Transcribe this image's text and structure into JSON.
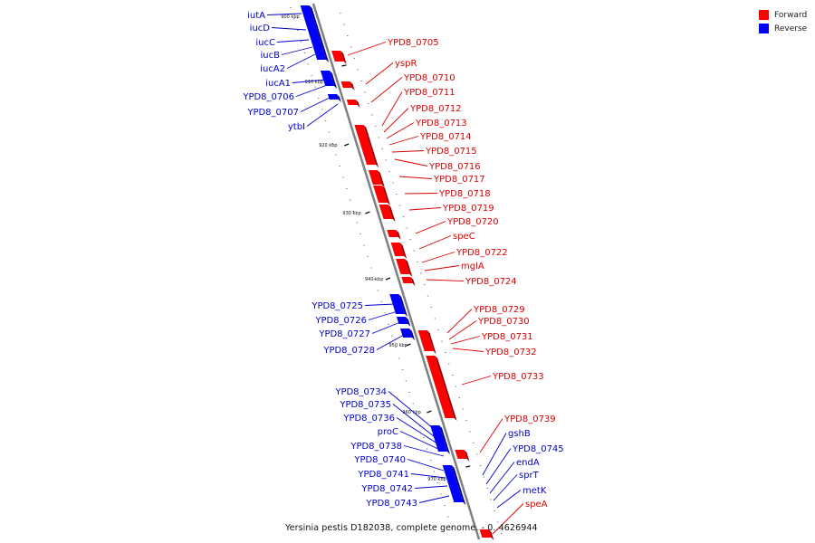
{
  "legend": {
    "forward_label": "Forward",
    "reverse_label": "Reverse",
    "forward_color": "#ff0000",
    "reverse_color": "#0000ff"
  },
  "title": "Yersinia pestis D182038, complete genome. - 0..4626944",
  "scale_ticks": [
    "900 kbp",
    "910 kbp",
    "920 kbp",
    "930 kbp",
    "940 kbp",
    "950 kbp",
    "960 kbp",
    "970 kbp"
  ],
  "reverse_genes": [
    "iutA",
    "iucD",
    "iucC",
    "iucB",
    "iucA2",
    "iucA1",
    "YPD8_0706",
    "YPD8_0707",
    "ytbI",
    "YPD8_0725",
    "YPD8_0726",
    "YPD8_0727",
    "YPD8_0728",
    "YPD8_0734",
    "YPD8_0735",
    "YPD8_0736",
    "proC",
    "YPD8_0738",
    "YPD8_0740",
    "YPD8_0741",
    "YPD8_0742",
    "YPD8_0743"
  ],
  "forward_genes": [
    "YPD8_0705",
    "yspR",
    "YPD8_0710",
    "YPD8_0711",
    "YPD8_0712",
    "YPD8_0713",
    "YPD8_0714",
    "YPD8_0715",
    "YPD8_0716",
    "YPD8_0717",
    "YPD8_0718",
    "YPD8_0719",
    "YPD8_0720",
    "speC",
    "YPD8_0722",
    "mglA",
    "YPD8_0724",
    "YPD8_0729",
    "YPD8_0730",
    "YPD8_0731",
    "YPD8_0732",
    "YPD8_0733",
    "YPD8_0739",
    "speA"
  ],
  "forward_genes_right_blue": [
    "gshB",
    "YPD8_0745",
    "endA",
    "sprT",
    "metK"
  ]
}
